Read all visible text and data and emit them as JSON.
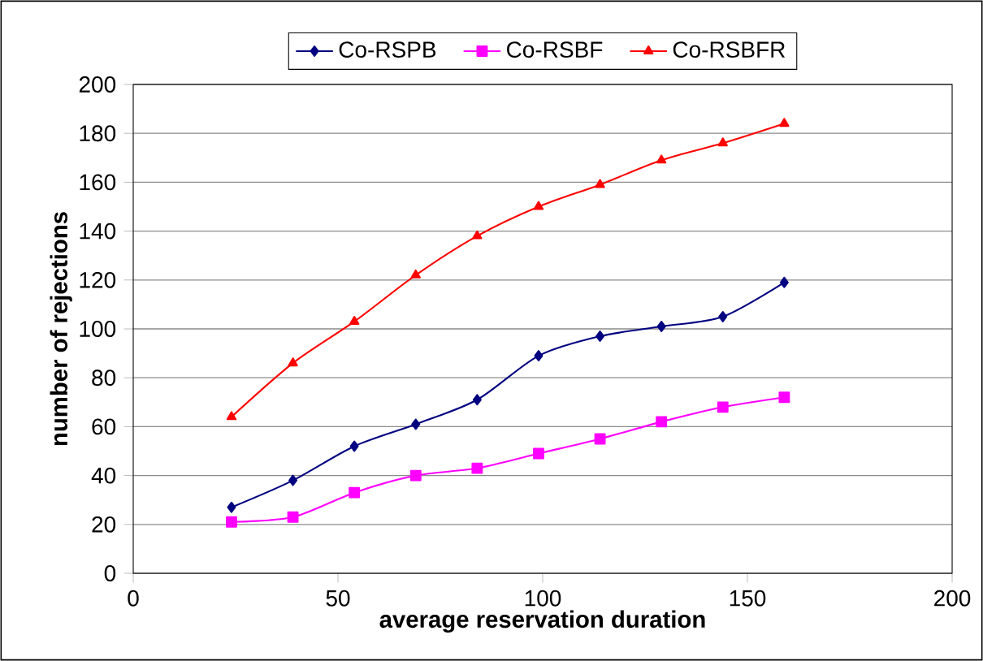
{
  "chart_data": {
    "type": "line",
    "xlabel": "average reservation duration",
    "ylabel": "number of rejections",
    "x": [
      24,
      39,
      54,
      69,
      84,
      99,
      114,
      129,
      144,
      159
    ],
    "series": [
      {
        "name": "Co-RSPB",
        "color": "#000080",
        "marker": "diamond",
        "values": [
          27,
          38,
          52,
          61,
          71,
          89,
          97,
          101,
          105,
          119
        ]
      },
      {
        "name": "Co-RSBF",
        "color": "#ff00ff",
        "marker": "square",
        "values": [
          21,
          23,
          33,
          40,
          43,
          49,
          55,
          62,
          68,
          72
        ]
      },
      {
        "name": "Co-RSBFR",
        "color": "#ff0000",
        "marker": "triangle",
        "values": [
          64,
          86,
          103,
          122,
          138,
          150,
          159,
          169,
          176,
          184
        ]
      }
    ],
    "xlim": [
      0,
      200
    ],
    "xticks": [
      0,
      50,
      100,
      150,
      200
    ],
    "ylim": [
      0,
      200
    ],
    "yticks": [
      0,
      20,
      40,
      60,
      80,
      100,
      120,
      140,
      160,
      180,
      200
    ],
    "grid": "y",
    "legend": "top",
    "line_style": "solid"
  }
}
